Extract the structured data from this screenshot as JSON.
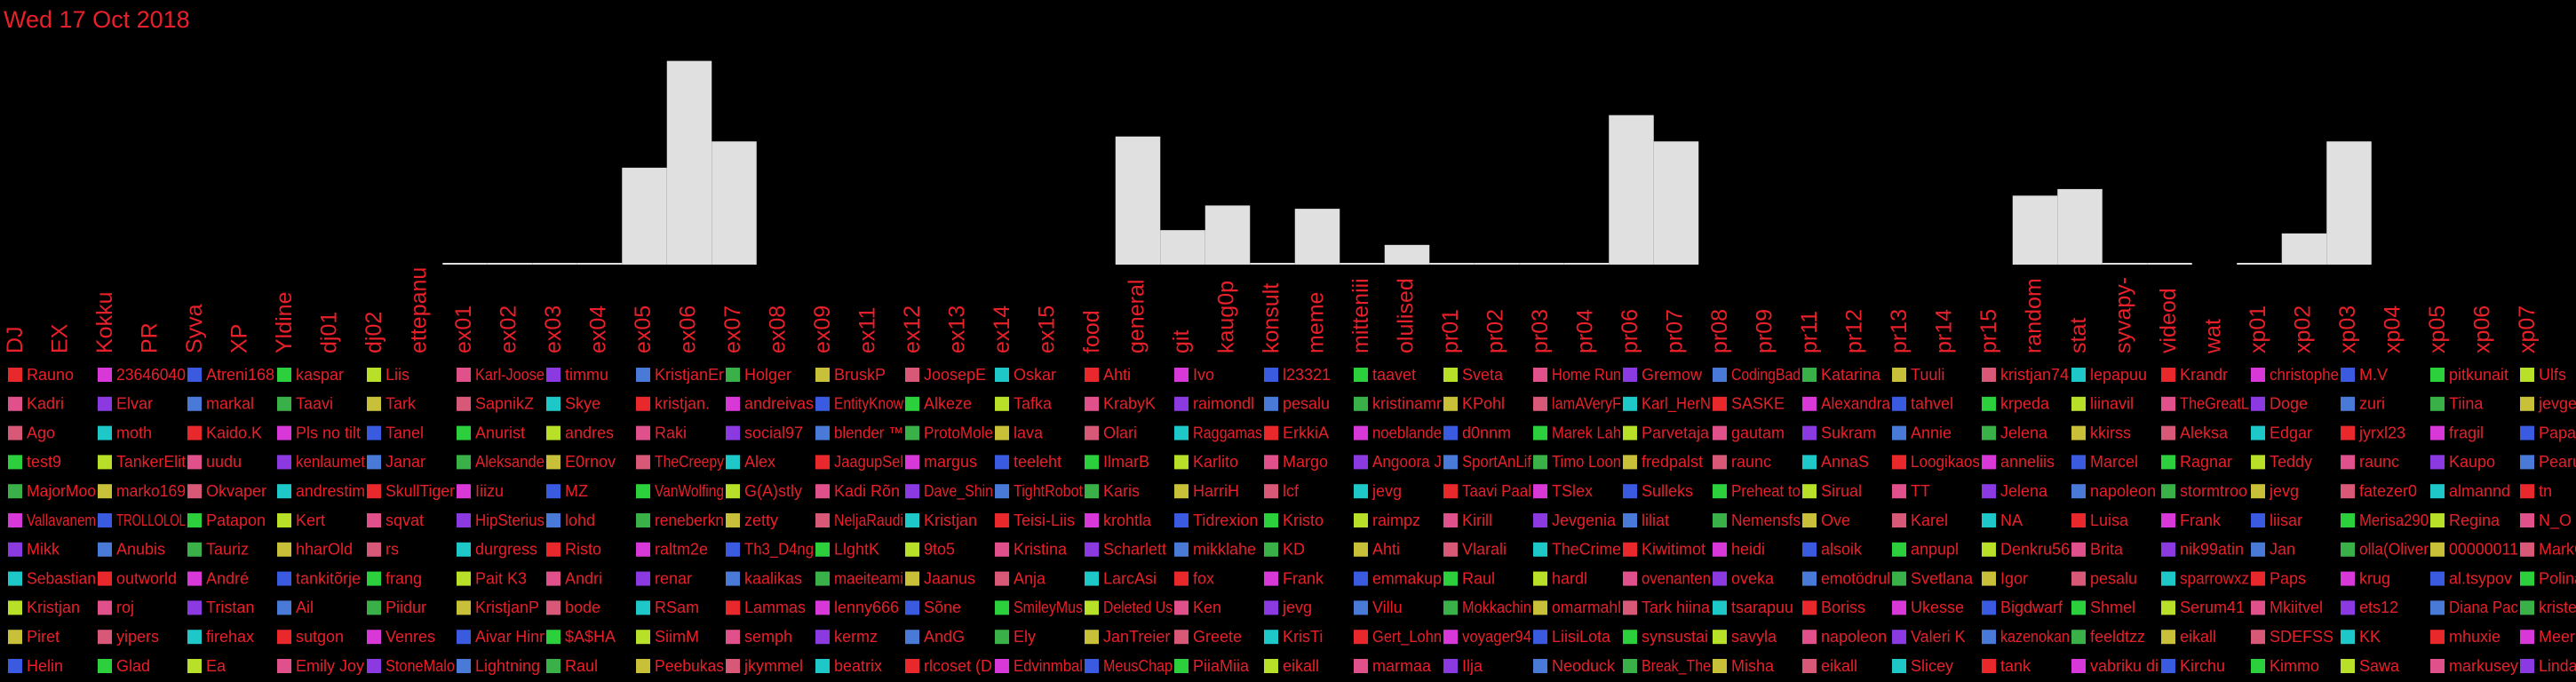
{
  "chart_data": {
    "type": "bar",
    "title": "Wed 17 Oct 2018",
    "color": "#e0e0e0",
    "label_color": "#e8202a",
    "categories": [
      "DJ",
      "EX",
      "Kokku",
      "PR",
      "Syva",
      "XP",
      "Yldine",
      "dj01",
      "dj02",
      "ettepanu",
      "ex01",
      "ex02",
      "ex03",
      "ex04",
      "ex05",
      "ex06",
      "ex07",
      "ex08",
      "ex09",
      "ex11",
      "ex12",
      "ex13",
      "ex14",
      "ex15",
      "food",
      "general",
      "git",
      "kaug0p",
      "konsult",
      "meme",
      "mitteniii",
      "olulised",
      "pr01",
      "pr02",
      "pr03",
      "pr04",
      "pr06",
      "pr07",
      "pr08",
      "pr09",
      "pr11",
      "pr12",
      "pr13",
      "pr14",
      "pr15",
      "random",
      "stat",
      "syvapy-",
      "videod",
      "wat",
      "xp01",
      "xp02",
      "xp03",
      "xp04",
      "xp05",
      "xp06",
      "xp07"
    ],
    "values": [
      null,
      null,
      null,
      null,
      null,
      null,
      null,
      null,
      null,
      null,
      0,
      0,
      0,
      0,
      59,
      124,
      75,
      null,
      null,
      null,
      null,
      null,
      null,
      null,
      null,
      78,
      21,
      36,
      0,
      34,
      0,
      12,
      0,
      0,
      0,
      0,
      91,
      75,
      null,
      null,
      null,
      null,
      null,
      null,
      null,
      42,
      46,
      0,
      0,
      null,
      0,
      19,
      75,
      null,
      null,
      null,
      null
    ],
    "ylim": [
      0,
      130
    ],
    "legend": [
      {
        "names": [
          "Rauno",
          "23646040",
          "Atreni168",
          "kaspar",
          "Liis",
          "Karl-Joose",
          "timmu",
          "KristjanEr",
          "Holger",
          "BruskP",
          "JoosepE",
          "Oskar",
          "Ahti",
          "Ivo",
          "l23321",
          "taavet",
          "Sveta",
          "Home Run",
          "Gremow",
          "CodingBad",
          "Katarina",
          "Tuuli",
          "kristjan74",
          "lepapuu",
          "Krandr",
          "christophe",
          "M.V",
          "pitkunait",
          "Ulfs"
        ],
        "colors": [
          "#e8282a",
          "#d838d8",
          "#3a5ae0",
          "#2ccf3c",
          "#b8e028",
          "#e0508a",
          "#8a3ae0",
          "#4a7ad8",
          "#3ab048",
          "#c8c038",
          "#d85878",
          "#1ec8c8",
          "#e8282a",
          "#d838d8",
          "#3a5ae0",
          "#2ccf3c",
          "#b8e028",
          "#e0508a",
          "#8a3ae0",
          "#4a7ad8",
          "#3ab048",
          "#c8c038",
          "#d85878",
          "#1ec8c8",
          "#e8282a",
          "#d838d8",
          "#3a5ae0",
          "#2ccf3c",
          "#b8e028"
        ]
      },
      {
        "names": [
          "Kadri",
          "Elvar",
          "markal",
          "Taavi",
          "Tark",
          "SapnikZ",
          "Skye",
          "kristjan.",
          "andreivas",
          "EntityKnow",
          "Alkeze",
          "Tafka",
          "KrabyK",
          "raimondl",
          "pesalu",
          "kristinamr",
          "KPohl",
          "lamAVeryF",
          "Karl_HerN",
          "SASKE",
          "Alexandra",
          "tahvel",
          "krpeda",
          "liinavil",
          "TheGreatL",
          "Doge",
          "zuri",
          "Tiina",
          "jevgen"
        ],
        "colors": [
          "#e0508a",
          "#8a3ae0",
          "#4a7ad8",
          "#3ab048",
          "#c8c038",
          "#d85878",
          "#1ec8c8",
          "#e8282a",
          "#d838d8",
          "#3a5ae0",
          "#2ccf3c",
          "#b8e028",
          "#e0508a",
          "#8a3ae0",
          "#4a7ad8",
          "#3ab048",
          "#c8c038",
          "#d85878",
          "#1ec8c8",
          "#e8282a",
          "#d838d8",
          "#3a5ae0",
          "#2ccf3c",
          "#b8e028",
          "#e0508a",
          "#8a3ae0",
          "#4a7ad8",
          "#3ab048",
          "#c8c038"
        ]
      },
      {
        "names": [
          "Ago",
          "moth",
          "Kaido.K",
          "Pls no tilt",
          "Tanel",
          "Anurist",
          "andres",
          "Raki",
          "social97",
          "blender ™",
          "ProtoMole",
          "lava",
          "Olari",
          "Raggamas",
          "ErkkiA",
          "noeblande",
          "d0nnm",
          "Marek Lah",
          "Parvetaja",
          "gautam",
          "Sukram",
          "Annie",
          "Jelena",
          "kkirss",
          "Aleksa",
          "Edgar",
          "jyrxl23",
          "fragil",
          "PapaSay"
        ],
        "colors": [
          "#d85878",
          "#1ec8c8",
          "#e8282a",
          "#d838d8",
          "#3a5ae0",
          "#2ccf3c",
          "#b8e028",
          "#e0508a",
          "#8a3ae0",
          "#4a7ad8",
          "#3ab048",
          "#c8c038",
          "#d85878",
          "#1ec8c8",
          "#e8282a",
          "#d838d8",
          "#3a5ae0",
          "#2ccf3c",
          "#b8e028",
          "#e0508a",
          "#8a3ae0",
          "#4a7ad8",
          "#3ab048",
          "#c8c038",
          "#d85878",
          "#1ec8c8",
          "#e8282a",
          "#d838d8",
          "#3a5ae0"
        ]
      },
      {
        "names": [
          "test9",
          "TankerElit",
          "uudu",
          "kenlaumet",
          "Janar",
          "Aleksande",
          "E0rnov",
          "TheCreepy",
          "Alex",
          "JaagupSel",
          "margus",
          "teeleht",
          "IlmarB",
          "Karlito",
          "Margo",
          "Angoora J",
          "SportAnLif",
          "Timo Loon",
          "fredpalst",
          "raunc",
          "AnnaS",
          "Loogikaos",
          "anneliis",
          "Marcel",
          "Ragnar",
          "Teddy",
          "raunc",
          "Kaupo",
          "Pearu Pu"
        ],
        "colors": [
          "#2ccf3c",
          "#b8e028",
          "#e0508a",
          "#8a3ae0",
          "#4a7ad8",
          "#3ab048",
          "#c8c038",
          "#d85878",
          "#1ec8c8",
          "#e8282a",
          "#d838d8",
          "#3a5ae0",
          "#2ccf3c",
          "#b8e028",
          "#e0508a",
          "#8a3ae0",
          "#4a7ad8",
          "#3ab048",
          "#c8c038",
          "#d85878",
          "#1ec8c8",
          "#e8282a",
          "#d838d8",
          "#3a5ae0",
          "#2ccf3c",
          "#b8e028",
          "#e0508a",
          "#8a3ae0",
          "#4a7ad8"
        ]
      },
      {
        "names": [
          "MajorMoo",
          "marko169",
          "Okvaper",
          "andrestim",
          "SkullTiger",
          "Iiizu",
          "MZ",
          "VanWolfing",
          "G(A)stly",
          "Kadi Rõn",
          "Dave_Shin",
          "TightRobot",
          "Karis",
          "HarriH",
          "lcf",
          "jevg",
          "Taavi Paal",
          "TSlex",
          "Sulleks",
          "Preheat to",
          "Sirual",
          "TT",
          "Jelena",
          "napoleon",
          "stormtroo",
          "jevg",
          "fatezer0",
          "almannd",
          "tn"
        ],
        "colors": [
          "#3ab048",
          "#c8c038",
          "#d85878",
          "#1ec8c8",
          "#e8282a",
          "#d838d8",
          "#3a5ae0",
          "#2ccf3c",
          "#b8e028",
          "#e0508a",
          "#8a3ae0",
          "#4a7ad8",
          "#3ab048",
          "#c8c038",
          "#d85878",
          "#1ec8c8",
          "#e8282a",
          "#d838d8",
          "#3a5ae0",
          "#2ccf3c",
          "#b8e028",
          "#e0508a",
          "#8a3ae0",
          "#4a7ad8",
          "#3ab048",
          "#c8c038",
          "#d85878",
          "#1ec8c8",
          "#e8282a"
        ]
      },
      {
        "names": [
          "Vallavanem",
          "TROLLOLOL",
          "Patapon",
          "Kert",
          "sqvat",
          "HipSterius",
          "lohd",
          "reneberkn",
          "zetty",
          "NeljaRaudi",
          "Kristjan",
          "Teisi-Liis",
          "krohtla",
          "Tidrexion",
          "Kristo",
          "raimpz",
          "Kirill",
          "Jevgenia",
          "liliat",
          "Nemensfs",
          "Ove",
          "Karel",
          "NA",
          "Luisa",
          "Frank",
          "liisar",
          "Merisa290",
          "Regina",
          "N_O"
        ],
        "colors": [
          "#d838d8",
          "#3a5ae0",
          "#2ccf3c",
          "#b8e028",
          "#e0508a",
          "#8a3ae0",
          "#4a7ad8",
          "#3ab048",
          "#c8c038",
          "#d85878",
          "#1ec8c8",
          "#e8282a",
          "#d838d8",
          "#3a5ae0",
          "#2ccf3c",
          "#b8e028",
          "#e0508a",
          "#8a3ae0",
          "#4a7ad8",
          "#3ab048",
          "#c8c038",
          "#d85878",
          "#1ec8c8",
          "#e8282a",
          "#d838d8",
          "#3a5ae0",
          "#2ccf3c",
          "#b8e028",
          "#e0508a"
        ]
      },
      {
        "names": [
          "Mikk",
          "Anubis",
          "Tauriz",
          "hharOld",
          "rs",
          "durgress",
          "Risto",
          "raltm2e",
          "Th3_D4ng",
          "LlghtK",
          "9to5",
          "Kristina",
          "Scharlett",
          "mikklahe",
          "KD",
          "Ahti",
          "Vlarali",
          "TheCrime",
          "Kiwitimot",
          "heidi",
          "alsoik",
          "anpupl",
          "Denkru56",
          "Brita",
          "nik99atin",
          "Jan",
          "olla(Oliver",
          "00000011",
          "MarkG"
        ],
        "colors": [
          "#8a3ae0",
          "#4a7ad8",
          "#3ab048",
          "#c8c038",
          "#d85878",
          "#1ec8c8",
          "#e8282a",
          "#d838d8",
          "#3a5ae0",
          "#2ccf3c",
          "#b8e028",
          "#e0508a",
          "#8a3ae0",
          "#4a7ad8",
          "#3ab048",
          "#c8c038",
          "#d85878",
          "#1ec8c8",
          "#e8282a",
          "#d838d8",
          "#3a5ae0",
          "#2ccf3c",
          "#b8e028",
          "#e0508a",
          "#8a3ae0",
          "#4a7ad8",
          "#3ab048",
          "#c8c038",
          "#d85878"
        ]
      },
      {
        "names": [
          "Sebastian",
          "outworld",
          "André",
          "tankitõrje",
          "frang",
          "Pait K3",
          "Andri",
          "renar",
          "kaalikas",
          "maeiteami",
          "Jaanus",
          "Anja",
          "LarcAsi",
          "fox",
          "Frank",
          "emmakup",
          "Raul",
          "hardl",
          "ovenanten",
          "oveka",
          "emotödrul",
          "Svetlana",
          "Igor",
          "pesalu",
          "sparrowxz",
          "Paps",
          "krug",
          "al.tsypov",
          "Polina"
        ],
        "colors": [
          "#1ec8c8",
          "#e8282a",
          "#d838d8",
          "#3a5ae0",
          "#2ccf3c",
          "#b8e028",
          "#e0508a",
          "#8a3ae0",
          "#4a7ad8",
          "#3ab048",
          "#c8c038",
          "#d85878",
          "#1ec8c8",
          "#e8282a",
          "#d838d8",
          "#3a5ae0",
          "#2ccf3c",
          "#b8e028",
          "#e0508a",
          "#8a3ae0",
          "#4a7ad8",
          "#3ab048",
          "#c8c038",
          "#d85878",
          "#1ec8c8",
          "#e8282a",
          "#d838d8",
          "#3a5ae0",
          "#2ccf3c"
        ]
      },
      {
        "names": [
          "Kristjan",
          "roj",
          "Tristan",
          "Ail",
          "Piidur",
          "KristjanP",
          "bode",
          "RSam",
          "Lammas",
          "lenny666",
          "Sõne",
          "SmileyMus",
          "Deleted Us",
          "Ken",
          "jevg",
          "Villu",
          "Mokkachin",
          "omarmahl",
          "Tark hiina",
          "tsarapuu",
          "Boriss",
          "Ukesse",
          "Bigdwarf",
          "Shmel",
          "Serum41",
          "Mkiitvel",
          "ets12",
          "Diana Pac",
          "kristel"
        ],
        "colors": [
          "#b8e028",
          "#e0508a",
          "#8a3ae0",
          "#4a7ad8",
          "#3ab048",
          "#c8c038",
          "#d85878",
          "#1ec8c8",
          "#e8282a",
          "#d838d8",
          "#3a5ae0",
          "#2ccf3c",
          "#b8e028",
          "#e0508a",
          "#8a3ae0",
          "#4a7ad8",
          "#3ab048",
          "#c8c038",
          "#d85878",
          "#1ec8c8",
          "#e8282a",
          "#d838d8",
          "#3a5ae0",
          "#2ccf3c",
          "#b8e028",
          "#e0508a",
          "#8a3ae0",
          "#4a7ad8",
          "#3ab048"
        ]
      },
      {
        "names": [
          "Piret",
          "yipers",
          "firehax",
          "sutgon",
          "Venres",
          "Aivar Hinr",
          "$A$HA",
          "SiimM",
          "semph",
          "kermz",
          "AndG",
          "Ely",
          "JanTreier",
          "Greete",
          "KrisTi",
          "Gert_Lohn",
          "voyager94",
          "LiisiLota",
          "synsustai",
          "savyla",
          "napoleon",
          "Valeri K",
          "kazenokan",
          "feeldtzz",
          "eikall",
          "SDEFSS",
          "KK",
          "mhuxie",
          "Meeri"
        ],
        "colors": [
          "#c8c038",
          "#d85878",
          "#1ec8c8",
          "#e8282a",
          "#d838d8",
          "#3a5ae0",
          "#2ccf3c",
          "#b8e028",
          "#e0508a",
          "#8a3ae0",
          "#4a7ad8",
          "#3ab048",
          "#c8c038",
          "#d85878",
          "#1ec8c8",
          "#e8282a",
          "#d838d8",
          "#3a5ae0",
          "#2ccf3c",
          "#b8e028",
          "#e0508a",
          "#8a3ae0",
          "#4a7ad8",
          "#3ab048",
          "#c8c038",
          "#d85878",
          "#1ec8c8",
          "#e8282a",
          "#d838d8"
        ]
      },
      {
        "names": [
          "Helin",
          "Glad",
          "Ea",
          "Emily Joy",
          "StoneMalo",
          "Lightning",
          "Raul",
          "Peebukas",
          "jkymmel",
          "beatrix",
          "rlcoset (D",
          "Edvinmbal",
          "MeusChap",
          "PiiaMiia",
          "eikall",
          "marmaa",
          "Ilja",
          "Neoduck",
          "Break_The",
          "Misha",
          "eikall",
          "Slicey",
          "tank",
          "vabriku di",
          "Kirchu",
          "Kimmo",
          "Sawa",
          "markusey",
          "Lindaman"
        ],
        "colors": [
          "#3a5ae0",
          "#2ccf3c",
          "#b8e028",
          "#e0508a",
          "#8a3ae0",
          "#4a7ad8",
          "#3ab048",
          "#c8c038",
          "#d85878",
          "#1ec8c8",
          "#e8282a",
          "#d838d8",
          "#3a5ae0",
          "#2ccf3c",
          "#b8e028",
          "#e0508a",
          "#8a3ae0",
          "#4a7ad8",
          "#3ab048",
          "#c8c038",
          "#d85878",
          "#1ec8c8",
          "#e8282a",
          "#d838d8",
          "#3a5ae0",
          "#2ccf3c",
          "#b8e028",
          "#e0508a",
          "#8a3ae0"
        ]
      }
    ]
  }
}
